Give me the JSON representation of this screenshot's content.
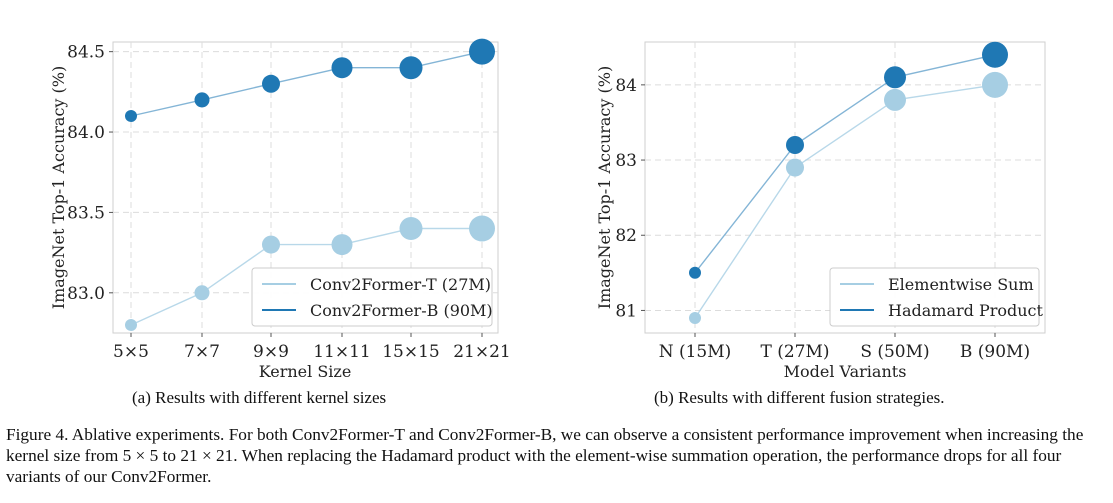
{
  "chart_data": [
    {
      "type": "scatter",
      "mode": "line+markers",
      "caption": "(a) Results with different kernel sizes",
      "xlabel": "Kernel Size",
      "ylabel": "ImageNet Top-1 Accuracy (%)",
      "categories": [
        "5×5",
        "7×7",
        "9×9",
        "11×11",
        "15×15",
        "21×21"
      ],
      "ylim": [
        82.75,
        84.56
      ],
      "yticks": [
        "83.0",
        "83.5",
        "84.0",
        "84.5"
      ],
      "ytick_values": [
        83.0,
        83.5,
        84.0,
        84.5
      ],
      "grid": true,
      "legend": "bottom-right",
      "series": [
        {
          "name": "Conv2Former-T (27M)",
          "color": "#a6cee3",
          "values": [
            82.8,
            83.0,
            83.3,
            83.3,
            83.4,
            83.4
          ]
        },
        {
          "name": "Conv2Former-B (90M)",
          "color": "#1f78b4",
          "values": [
            84.1,
            84.2,
            84.3,
            84.4,
            84.4,
            84.5
          ]
        }
      ]
    },
    {
      "type": "scatter",
      "mode": "line+markers",
      "caption": "(b) Results with different fusion strategies.",
      "xlabel": "Model Variants",
      "ylabel": "ImageNet Top-1 Accuracy (%)",
      "categories": [
        "N (15M)",
        "T (27M)",
        "S (50M)",
        "B (90M)"
      ],
      "ylim": [
        80.7,
        84.57
      ],
      "yticks": [
        "81",
        "82",
        "83",
        "84"
      ],
      "ytick_values": [
        81,
        82,
        83,
        84
      ],
      "grid": true,
      "legend": "bottom-right",
      "series": [
        {
          "name": "Elementwise Sum",
          "color": "#a6cee3",
          "values": [
            80.9,
            82.9,
            83.8,
            84.0
          ]
        },
        {
          "name": "Hadamard Product",
          "color": "#1f78b4",
          "values": [
            81.5,
            83.2,
            84.1,
            84.4
          ]
        }
      ]
    }
  ],
  "figure_caption": "Figure 4. Ablative experiments. For both Conv2Former-T and Conv2Former-B, we can observe a consistent performance improvement when increasing the kernel size from 5 × 5 to 21 × 21. When replacing the Hadamard product with the element-wise summation operation, the performance drops for all four variants of our Conv2Former."
}
